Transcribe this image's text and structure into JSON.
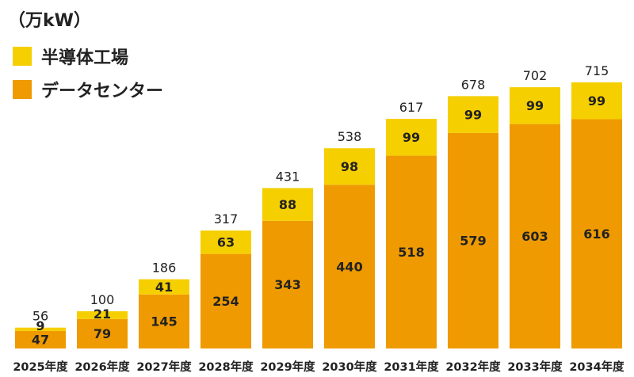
{
  "colors": {
    "semiconductor": "#F5CF00",
    "datacenter": "#EE9A00",
    "text": "#222222"
  },
  "chart_data": {
    "type": "bar",
    "stacked": true,
    "unit": "（万kW）",
    "categories": [
      "2025年度",
      "2026年度",
      "2027年度",
      "2028年度",
      "2029年度",
      "2030年度",
      "2031年度",
      "2032年度",
      "2033年度",
      "2034年度"
    ],
    "series": [
      {
        "name": "データセンター",
        "values": [
          47,
          79,
          145,
          254,
          343,
          440,
          518,
          579,
          603,
          616
        ]
      },
      {
        "name": "半導体工場",
        "values": [
          9,
          21,
          41,
          63,
          88,
          98,
          99,
          99,
          99,
          99
        ]
      }
    ],
    "totals": [
      56,
      100,
      186,
      317,
      431,
      538,
      617,
      678,
      702,
      715
    ],
    "ylim": [
      0,
      715
    ],
    "grid": false,
    "legend": "top-left"
  }
}
